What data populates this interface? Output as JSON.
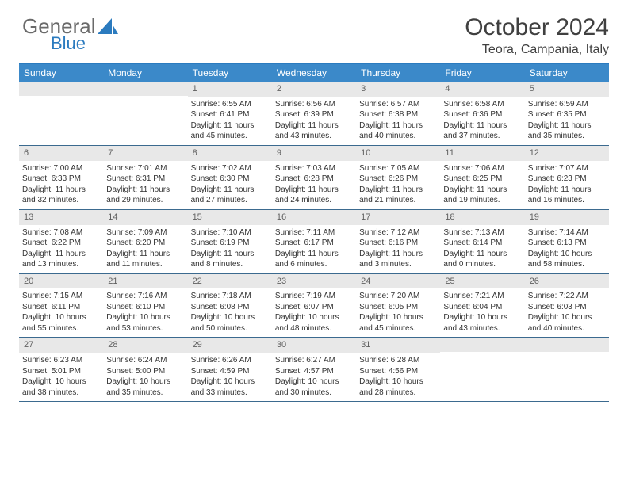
{
  "logo": {
    "word1": "General",
    "word2": "Blue"
  },
  "title": "October 2024",
  "location": "Teora, Campania, Italy",
  "colors": {
    "header_bg": "#3b89c9",
    "header_text": "#ffffff",
    "border_top": "#2b7bbf",
    "row_divider": "#3b6a8f",
    "daynum_bg": "#e8e8e8",
    "daynum_text": "#606060",
    "body_text": "#333333",
    "logo_grey": "#6a6a6a",
    "logo_blue": "#2b7bbf"
  },
  "day_labels": [
    "Sunday",
    "Monday",
    "Tuesday",
    "Wednesday",
    "Thursday",
    "Friday",
    "Saturday"
  ],
  "weeks": [
    [
      null,
      null,
      {
        "n": "1",
        "sr": "6:55 AM",
        "ss": "6:41 PM",
        "dl": "11 hours and 45 minutes."
      },
      {
        "n": "2",
        "sr": "6:56 AM",
        "ss": "6:39 PM",
        "dl": "11 hours and 43 minutes."
      },
      {
        "n": "3",
        "sr": "6:57 AM",
        "ss": "6:38 PM",
        "dl": "11 hours and 40 minutes."
      },
      {
        "n": "4",
        "sr": "6:58 AM",
        "ss": "6:36 PM",
        "dl": "11 hours and 37 minutes."
      },
      {
        "n": "5",
        "sr": "6:59 AM",
        "ss": "6:35 PM",
        "dl": "11 hours and 35 minutes."
      }
    ],
    [
      {
        "n": "6",
        "sr": "7:00 AM",
        "ss": "6:33 PM",
        "dl": "11 hours and 32 minutes."
      },
      {
        "n": "7",
        "sr": "7:01 AM",
        "ss": "6:31 PM",
        "dl": "11 hours and 29 minutes."
      },
      {
        "n": "8",
        "sr": "7:02 AM",
        "ss": "6:30 PM",
        "dl": "11 hours and 27 minutes."
      },
      {
        "n": "9",
        "sr": "7:03 AM",
        "ss": "6:28 PM",
        "dl": "11 hours and 24 minutes."
      },
      {
        "n": "10",
        "sr": "7:05 AM",
        "ss": "6:26 PM",
        "dl": "11 hours and 21 minutes."
      },
      {
        "n": "11",
        "sr": "7:06 AM",
        "ss": "6:25 PM",
        "dl": "11 hours and 19 minutes."
      },
      {
        "n": "12",
        "sr": "7:07 AM",
        "ss": "6:23 PM",
        "dl": "11 hours and 16 minutes."
      }
    ],
    [
      {
        "n": "13",
        "sr": "7:08 AM",
        "ss": "6:22 PM",
        "dl": "11 hours and 13 minutes."
      },
      {
        "n": "14",
        "sr": "7:09 AM",
        "ss": "6:20 PM",
        "dl": "11 hours and 11 minutes."
      },
      {
        "n": "15",
        "sr": "7:10 AM",
        "ss": "6:19 PM",
        "dl": "11 hours and 8 minutes."
      },
      {
        "n": "16",
        "sr": "7:11 AM",
        "ss": "6:17 PM",
        "dl": "11 hours and 6 minutes."
      },
      {
        "n": "17",
        "sr": "7:12 AM",
        "ss": "6:16 PM",
        "dl": "11 hours and 3 minutes."
      },
      {
        "n": "18",
        "sr": "7:13 AM",
        "ss": "6:14 PM",
        "dl": "11 hours and 0 minutes."
      },
      {
        "n": "19",
        "sr": "7:14 AM",
        "ss": "6:13 PM",
        "dl": "10 hours and 58 minutes."
      }
    ],
    [
      {
        "n": "20",
        "sr": "7:15 AM",
        "ss": "6:11 PM",
        "dl": "10 hours and 55 minutes."
      },
      {
        "n": "21",
        "sr": "7:16 AM",
        "ss": "6:10 PM",
        "dl": "10 hours and 53 minutes."
      },
      {
        "n": "22",
        "sr": "7:18 AM",
        "ss": "6:08 PM",
        "dl": "10 hours and 50 minutes."
      },
      {
        "n": "23",
        "sr": "7:19 AM",
        "ss": "6:07 PM",
        "dl": "10 hours and 48 minutes."
      },
      {
        "n": "24",
        "sr": "7:20 AM",
        "ss": "6:05 PM",
        "dl": "10 hours and 45 minutes."
      },
      {
        "n": "25",
        "sr": "7:21 AM",
        "ss": "6:04 PM",
        "dl": "10 hours and 43 minutes."
      },
      {
        "n": "26",
        "sr": "7:22 AM",
        "ss": "6:03 PM",
        "dl": "10 hours and 40 minutes."
      }
    ],
    [
      {
        "n": "27",
        "sr": "6:23 AM",
        "ss": "5:01 PM",
        "dl": "10 hours and 38 minutes."
      },
      {
        "n": "28",
        "sr": "6:24 AM",
        "ss": "5:00 PM",
        "dl": "10 hours and 35 minutes."
      },
      {
        "n": "29",
        "sr": "6:26 AM",
        "ss": "4:59 PM",
        "dl": "10 hours and 33 minutes."
      },
      {
        "n": "30",
        "sr": "6:27 AM",
        "ss": "4:57 PM",
        "dl": "10 hours and 30 minutes."
      },
      {
        "n": "31",
        "sr": "6:28 AM",
        "ss": "4:56 PM",
        "dl": "10 hours and 28 minutes."
      },
      null,
      null
    ]
  ],
  "labels": {
    "sunrise": "Sunrise:",
    "sunset": "Sunset:",
    "daylight": "Daylight:"
  }
}
